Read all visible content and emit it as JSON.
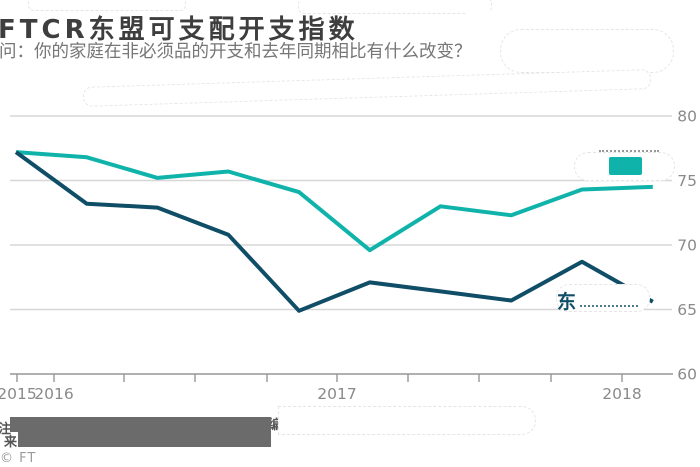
{
  "header": {
    "title": "FTCR东盟可支配开支指数",
    "subtitle": "问：你的家庭在非必须品的开支和去年同期相比有什么改变？"
  },
  "chart_data": {
    "type": "line",
    "x": [
      "2015-11",
      "2016-02",
      "2016-05",
      "2016-08",
      "2016-11",
      "2017-02",
      "2017-05",
      "2017-08",
      "2017-11",
      "2018-02"
    ],
    "series": [
      {
        "name": "teal-line",
        "legend_label_covered": true,
        "legend_visible_text": "",
        "color": "#10b3aa",
        "values": [
          77.2,
          76.8,
          75.2,
          75.7,
          74.1,
          69.6,
          73.0,
          72.3,
          74.3,
          74.5
        ]
      },
      {
        "name": "dark-line",
        "legend_label_covered": true,
        "legend_visible_text": "东",
        "color": "#0f4e66",
        "values": [
          77.2,
          73.2,
          72.9,
          70.8,
          64.9,
          67.1,
          66.4,
          65.7,
          68.7,
          65.6
        ]
      }
    ],
    "title": "FTCR东盟可支配开支指数",
    "xlabel": "",
    "ylabel": "",
    "ylim": [
      60,
      80
    ],
    "yticks": [
      80,
      75,
      70,
      65,
      60
    ],
    "xtick_year_labels": [
      "2015",
      "2016",
      "2017",
      "2018"
    ],
    "grid": "horizontal",
    "legend_position": "inline-right"
  },
  "legend": {
    "dark_visible_char": "东"
  },
  "footer": {
    "note_prefix": "注",
    "source_prefix": "来",
    "note_fragment": "编",
    "copyright": "© FT"
  },
  "colors": {
    "teal": "#10b3aa",
    "dark_blue": "#0f4e66",
    "gridline": "#d7d7d7",
    "axis": "#969696",
    "tick_label": "#8a8a8a",
    "title_text": "#3e3e3e",
    "subtitle_text": "#767676",
    "redaction_gray": "#6b6b6b"
  }
}
